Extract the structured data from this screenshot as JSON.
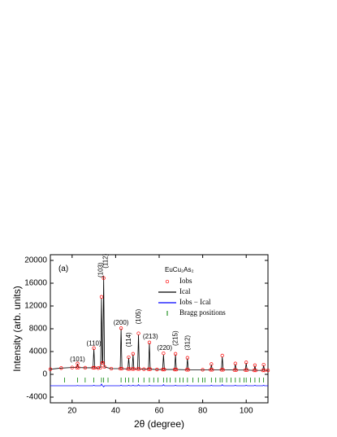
{
  "chart_data": {
    "type": "xrd",
    "xlabel": "2θ (degree)",
    "ylabel": "Intensity (arb. units)",
    "legend_title": "EuCu₂As₂",
    "legend": "upper right",
    "xlim": [
      10,
      110
    ],
    "xticks": [
      20,
      40,
      60,
      80,
      100
    ],
    "ylim": [
      -5000,
      21000
    ],
    "yticks": [
      -4000,
      0,
      4000,
      8000,
      12000,
      16000,
      20000
    ],
    "x": [
      10,
      15,
      20,
      22.1,
      22.5,
      22.9,
      26,
      29.6,
      30,
      30.4,
      32,
      33.1,
      33.5,
      33.9,
      34.1,
      34.5,
      34.9,
      38,
      42.1,
      42.5,
      42.9,
      45.6,
      46,
      46.4,
      47.6,
      48,
      48.4,
      50.1,
      50.5,
      50.9,
      53,
      55.1,
      55.5,
      55.9,
      59,
      61.6,
      62,
      62.4,
      67.1,
      67.5,
      67.9,
      72.6,
      73,
      73.4,
      80,
      83.6,
      84,
      84.4,
      88.6,
      89,
      89.4,
      94.6,
      95,
      95.4,
      99.6,
      100,
      100.4,
      103.6,
      104,
      104.4,
      107.6,
      108,
      108.4,
      110
    ],
    "series": [
      {
        "name": "Iobs",
        "style": "points",
        "color": "#ff0000",
        "values": [
          900,
          1100,
          1200,
          1200,
          1900,
          1200,
          1150,
          1150,
          4600,
          1150,
          1100,
          1200,
          13600,
          2000,
          2000,
          16900,
          1300,
          1000,
          1000,
          8100,
          1000,
          950,
          3000,
          950,
          950,
          3600,
          950,
          950,
          7200,
          950,
          900,
          900,
          5600,
          900,
          850,
          850,
          3700,
          850,
          850,
          3600,
          850,
          800,
          2900,
          800,
          800,
          800,
          1800,
          800,
          800,
          3300,
          800,
          750,
          1900,
          750,
          750,
          2100,
          750,
          700,
          1600,
          700,
          700,
          1700,
          700,
          700
        ]
      },
      {
        "name": "Ical",
        "style": "line",
        "color": "#000000",
        "values": [
          900,
          1100,
          1200,
          1200,
          1850,
          1200,
          1150,
          1150,
          4500,
          1150,
          1100,
          1200,
          13300,
          2000,
          2000,
          17100,
          1300,
          1000,
          1000,
          8000,
          1000,
          950,
          2900,
          950,
          950,
          3500,
          950,
          950,
          7000,
          950,
          900,
          900,
          5500,
          900,
          850,
          850,
          3500,
          850,
          850,
          3500,
          850,
          800,
          2800,
          800,
          800,
          800,
          1700,
          800,
          800,
          3100,
          800,
          750,
          1800,
          750,
          750,
          2000,
          750,
          700,
          1500,
          700,
          700,
          1600,
          700,
          700
        ]
      },
      {
        "name": "Iobs − Ical",
        "style": "line",
        "color": "#0000ff",
        "values": [
          -2000,
          -2000,
          -2000,
          -2000,
          -1950,
          -2000,
          -2000,
          -2000,
          -1900,
          -2000,
          -2000,
          -2000,
          -1700,
          -2000,
          -2000,
          -2200,
          -2000,
          -2000,
          -2000,
          -1900,
          -2000,
          -2000,
          -1900,
          -2000,
          -2000,
          -1900,
          -2000,
          -2000,
          -1800,
          -2000,
          -2000,
          -2000,
          -1900,
          -2000,
          -2000,
          -2000,
          -1800,
          -2000,
          -2000,
          -1900,
          -2000,
          -2000,
          -1900,
          -2000,
          -2000,
          -2000,
          -1900,
          -2000,
          -2000,
          -1800,
          -2000,
          -2000,
          -1900,
          -2000,
          -2000,
          -1900,
          -2000,
          -2000,
          -1900,
          -2000,
          -2000,
          -1900,
          -2000,
          -2000
        ]
      }
    ],
    "bragg": {
      "name": "Bragg positions",
      "color": "#008000",
      "x": [
        16.5,
        22.5,
        26,
        30,
        33.5,
        34.5,
        36.5,
        42.5,
        44.5,
        46,
        48,
        50.5,
        53,
        55.5,
        57.5,
        59.5,
        62,
        63.5,
        65,
        67.5,
        69.5,
        71,
        73,
        75.5,
        78,
        80,
        81,
        84,
        86,
        88,
        89,
        91,
        93,
        95,
        97,
        99,
        100,
        102,
        104,
        106,
        108
      ],
      "values": [
        -1000,
        -1000,
        -1000,
        -1000,
        -1000,
        -1000,
        -1000,
        -1000,
        -1000,
        -1000,
        -1000,
        -1000,
        -1000,
        -1000,
        -1000,
        -1000,
        -1000,
        -1000,
        -1000,
        -1000,
        -1000,
        -1000,
        -1000,
        -1000,
        -1000,
        -1000,
        -1000,
        -1000,
        -1000,
        -1000,
        -1000,
        -1000,
        -1000,
        -1000,
        -1000,
        -1000,
        -1000,
        -1000,
        -1000,
        -1000,
        -1000
      ]
    },
    "annotations": [
      {
        "text": "(a)",
        "x": 16,
        "y": 18500,
        "angle": 0
      },
      {
        "text": "(101)",
        "x": 22.5,
        "y": 2600,
        "angle": 0
      },
      {
        "text": "(110)",
        "x": 30,
        "y": 5400,
        "angle": 0
      },
      {
        "text": "(103)",
        "x": 33.2,
        "y": 17000,
        "angle": -90
      },
      {
        "text": "(112)",
        "x": 35.6,
        "y": 18600,
        "angle": -90
      },
      {
        "text": "(200)",
        "x": 42.5,
        "y": 9000,
        "angle": 0
      },
      {
        "text": "(114)",
        "x": 46.2,
        "y": 4800,
        "angle": -90
      },
      {
        "text": "(105)",
        "x": 50.6,
        "y": 8800,
        "angle": -90
      },
      {
        "text": "(213)",
        "x": 56,
        "y": 6600,
        "angle": 0
      },
      {
        "text": "(220)",
        "x": 62.5,
        "y": 4600,
        "angle": 0
      },
      {
        "text": "(215)",
        "x": 67.6,
        "y": 5000,
        "angle": -90
      },
      {
        "text": "(312)",
        "x": 73.2,
        "y": 4200,
        "angle": -90
      }
    ]
  }
}
